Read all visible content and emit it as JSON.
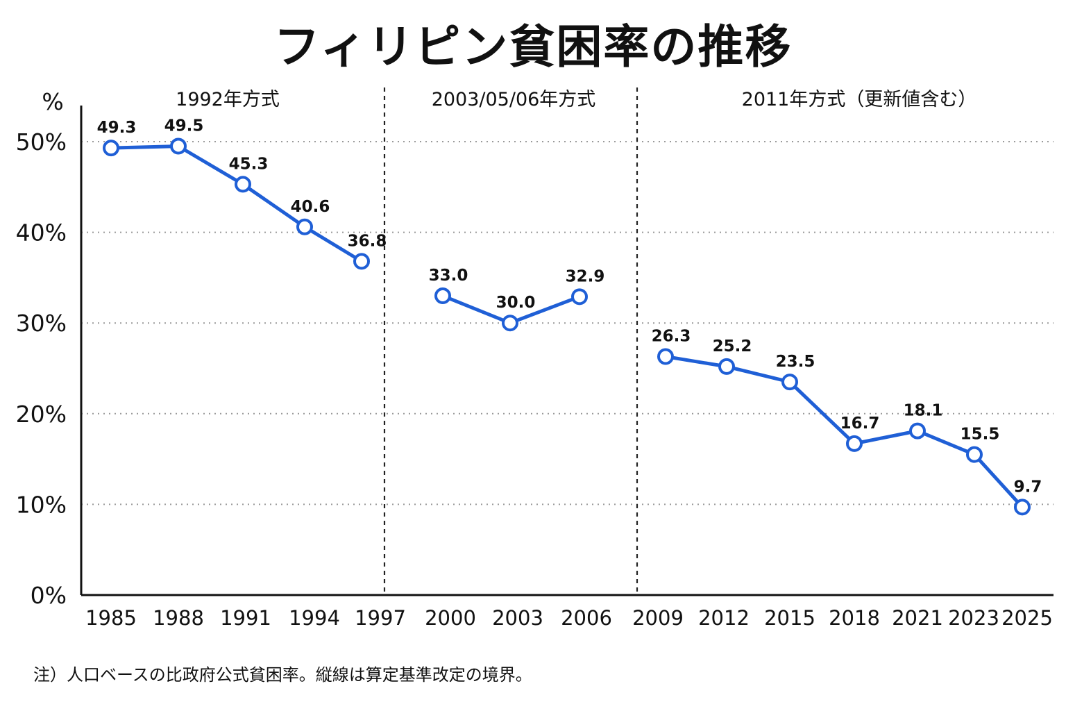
{
  "title": "フィリピン貧困率の推移",
  "note": "注）人口ベースの比政府公式貧困率。縦線は算定基準改定の境界。",
  "colors": {
    "line": "#1f5fd6",
    "marker_fill": "#ffffff",
    "axis": "#111111",
    "grid": "#9a9a9a"
  },
  "chart_data": {
    "type": "line",
    "title": "フィリピン貧困率の推移",
    "ylabel": "%",
    "ylim": [
      0,
      50
    ],
    "yticks": [
      0,
      10,
      20,
      30,
      40,
      50
    ],
    "ytick_labels": [
      "0%",
      "10%",
      "20%",
      "30%",
      "40%",
      "50%"
    ],
    "grid": "horizontal-dotted",
    "categories": [
      "1985",
      "1988",
      "1991",
      "1994",
      "1997",
      "2000",
      "2003",
      "2006",
      "2009",
      "2012",
      "2015",
      "2018",
      "2021",
      "2023",
      "2025"
    ],
    "segments": [
      {
        "label": "1992年方式",
        "x": [
          "1985",
          "1988",
          "1991",
          "1994",
          "1997"
        ],
        "values": [
          49.3,
          49.5,
          45.3,
          40.6,
          36.8
        ]
      },
      {
        "label": "2003/05/06年方式",
        "x": [
          "2000",
          "2003",
          "2006"
        ],
        "values": [
          33.0,
          30.0,
          32.9
        ]
      },
      {
        "label": "2011年方式（更新値含む）",
        "x": [
          "2009",
          "2012",
          "2015",
          "2018",
          "2021",
          "2023",
          "2025"
        ],
        "values": [
          26.3,
          25.2,
          23.5,
          16.7,
          18.1,
          15.5,
          9.7
        ]
      }
    ]
  }
}
